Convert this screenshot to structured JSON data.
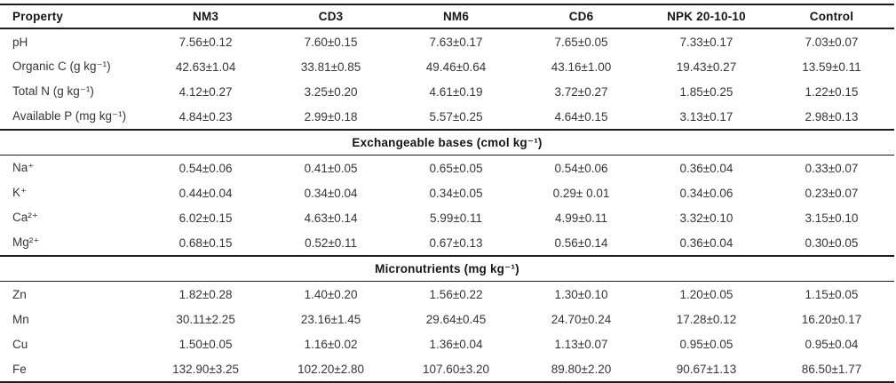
{
  "table": {
    "columns": [
      "Property",
      "NM3",
      "CD3",
      "NM6",
      "CD6",
      "NPK 20-10-10",
      "Control"
    ],
    "sections": [
      {
        "header": null,
        "rows": [
          {
            "property": "pH",
            "values": [
              "7.56±0.12",
              "7.60±0.15",
              "7.63±0.17",
              "7.65±0.05",
              "7.33±0.17",
              "7.03±0.07"
            ]
          },
          {
            "property": "Organic C (g kg⁻¹)",
            "values": [
              "42.63±1.04",
              "33.81±0.85",
              "49.46±0.64",
              "43.16±1.00",
              "19.43±0.27",
              "13.59±0.11"
            ]
          },
          {
            "property": "Total N (g kg⁻¹)",
            "values": [
              "4.12±0.27",
              "3.25±0.20",
              "4.61±0.19",
              "3.72±0.27",
              "1.85±0.25",
              "1.22±0.15"
            ]
          },
          {
            "property": "Available P (mg kg⁻¹)",
            "values": [
              "4.84±0.23",
              "2.99±0.18",
              "5.57±0.25",
              "4.64±0.15",
              "3.13±0.17",
              "2.98±0.13"
            ]
          }
        ]
      },
      {
        "header": "Exchangeable bases (cmol kg⁻¹)",
        "rows": [
          {
            "property": "Na⁺",
            "values": [
              "0.54±0.06",
              "0.41±0.05",
              "0.65±0.05",
              "0.54±0.06",
              "0.36±0.04",
              "0.33±0.07"
            ]
          },
          {
            "property": "K⁺",
            "values": [
              "0.44±0.04",
              "0.34±0.04",
              "0.34±0.05",
              "0.29± 0.01",
              "0.34±0.06",
              "0.23±0.07"
            ]
          },
          {
            "property": "Ca²⁺",
            "values": [
              "6.02±0.15",
              "4.63±0.14",
              "5.99±0.11",
              "4.99±0.11",
              "3.32±0.10",
              "3.15±0.10"
            ]
          },
          {
            "property": "Mg²⁺",
            "values": [
              "0.68±0.15",
              "0.52±0.11",
              "0.67±0.13",
              "0.56±0.14",
              "0.36±0.04",
              "0.30±0.05"
            ]
          }
        ]
      },
      {
        "header": "Micronutrients (mg kg⁻¹)",
        "rows": [
          {
            "property": "Zn",
            "values": [
              "1.82±0.28",
              "1.40±0.20",
              "1.56±0.22",
              "1.30±0.10",
              "1.20±0.05",
              "1.15±0.05"
            ]
          },
          {
            "property": "Mn",
            "values": [
              "30.11±2.25",
              "23.16±1.45",
              "29.64±0.45",
              "24.70±0.24",
              "17.28±0.12",
              "16.20±0.17"
            ]
          },
          {
            "property": "Cu",
            "values": [
              "1.50±0.05",
              "1.16±0.02",
              "1.36±0.04",
              "1.13±0.07",
              "0.95±0.05",
              "0.95±0.04"
            ]
          },
          {
            "property": "Fe",
            "values": [
              "132.90±3.25",
              "102.20±2.80",
              "107.60±3.20",
              "89.80±2.20",
              "90.67±1.13",
              "86.50±1.77"
            ]
          }
        ]
      }
    ]
  }
}
